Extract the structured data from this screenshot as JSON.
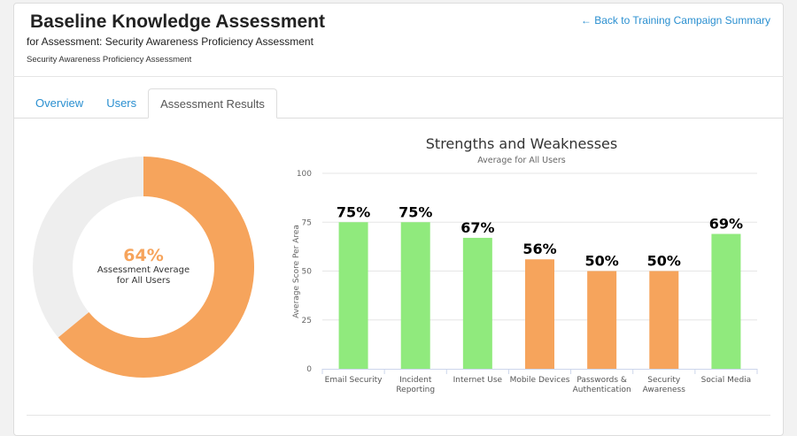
{
  "header": {
    "title": "Baseline Knowledge Assessment",
    "subtitle": "for Assessment: Security Awareness Proficiency Assessment",
    "description": "Security Awareness Proficiency Assessment",
    "back_link": "Back to Training Campaign Summary",
    "back_icon": "arrow-left-icon"
  },
  "tabs": [
    {
      "label": "Overview"
    },
    {
      "label": "Users"
    },
    {
      "label": "Assessment Results",
      "active": true
    }
  ],
  "donut": {
    "value_label": "64%",
    "value": 64,
    "caption_line1": "Assessment Average",
    "caption_line2": "for All Users",
    "colors": {
      "fill": "#f6a45c",
      "rest": "#eeeeee"
    }
  },
  "chart_data": {
    "type": "bar",
    "title": "Strengths and Weaknesses",
    "subtitle": "Average for All Users",
    "xlabel": "",
    "ylabel": "Average Score Per Area",
    "ylim": [
      0,
      100
    ],
    "yticks": [
      0,
      25,
      50,
      75,
      100
    ],
    "grid": true,
    "categories": [
      [
        "Email Security"
      ],
      [
        "Incident",
        "Reporting"
      ],
      [
        "Internet Use"
      ],
      [
        "Mobile Devices"
      ],
      [
        "Passwords &",
        "Authentication"
      ],
      [
        "Security",
        "Awareness"
      ],
      [
        "Social Media"
      ]
    ],
    "values": [
      75,
      75,
      67,
      56,
      50,
      50,
      69
    ],
    "data_labels": [
      "75%",
      "75%",
      "67%",
      "56%",
      "50%",
      "50%",
      "69%"
    ],
    "colors": [
      "#90ea7d",
      "#90ea7d",
      "#90ea7d",
      "#f6a45c",
      "#f6a45c",
      "#f6a45c",
      "#90ea7d"
    ]
  }
}
